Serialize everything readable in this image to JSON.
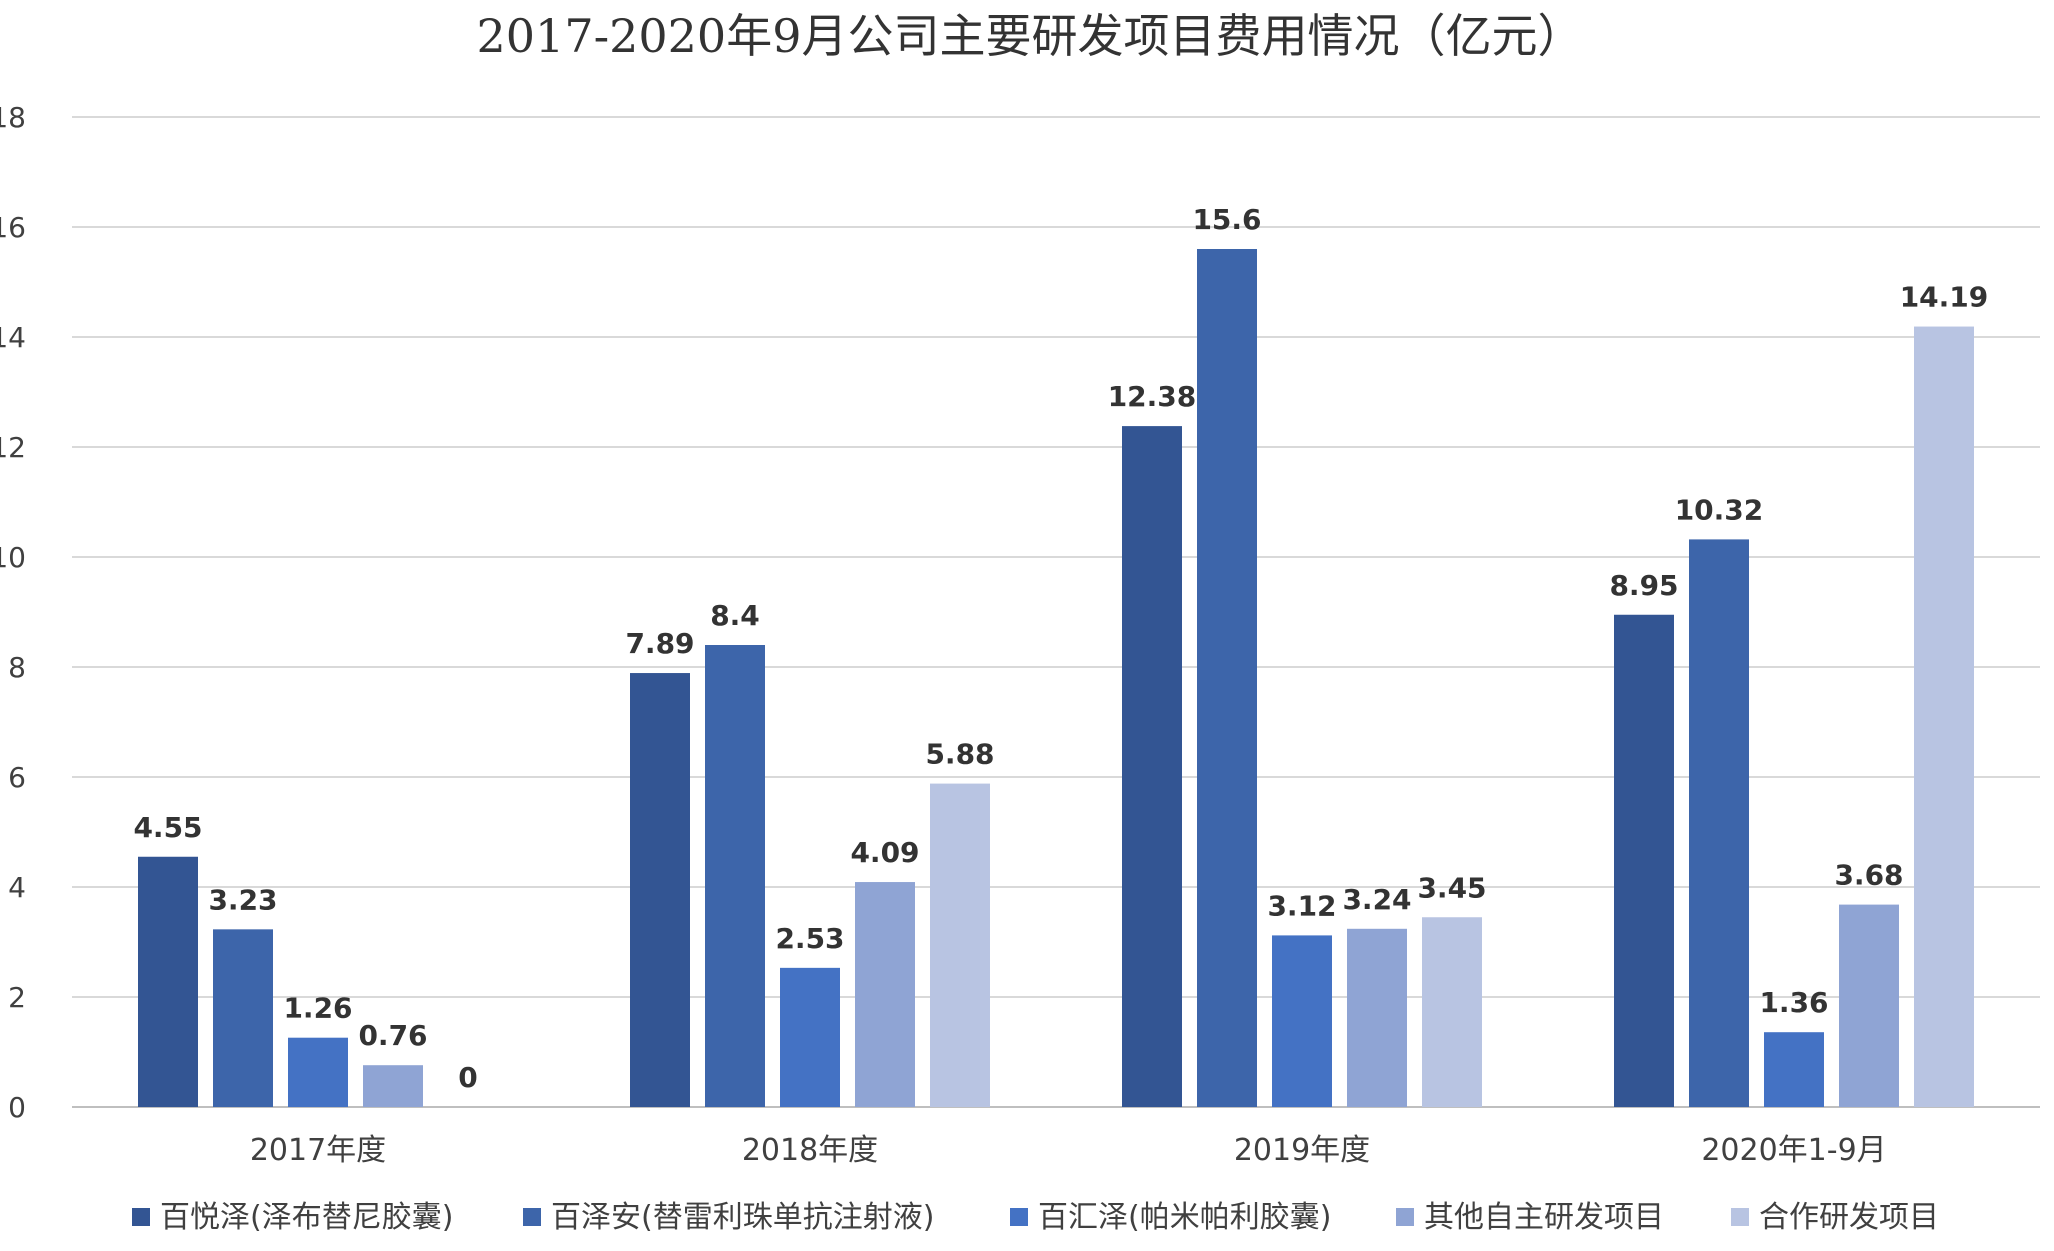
{
  "chart_data": {
    "type": "bar",
    "title": "2017-2020年9月公司主要研发项目费用情况（亿元）",
    "xlabel": "",
    "ylabel": "",
    "ylim": [
      0,
      18
    ],
    "yticks": [
      0,
      2,
      4,
      6,
      8,
      10,
      12,
      14,
      16,
      18
    ],
    "grid": true,
    "legend_position": "bottom",
    "categories": [
      "2017年度",
      "2018年度",
      "2019年度",
      "2020年1-9月"
    ],
    "series": [
      {
        "name": "百悦泽(泽布替尼胶囊)",
        "color": "#335593",
        "values": [
          4.55,
          7.89,
          12.38,
          8.95
        ],
        "labels": [
          "4.55",
          "7.89",
          "12.38",
          "8.95"
        ]
      },
      {
        "name": "百泽安(替雷利珠单抗注射液)",
        "color": "#3D65AA",
        "values": [
          3.23,
          8.4,
          15.6,
          10.32
        ],
        "labels": [
          "3.23",
          "8.4",
          "15.6",
          "10.32"
        ]
      },
      {
        "name": "百汇泽(帕米帕利胶囊)",
        "color": "#4472C4",
        "values": [
          1.26,
          2.53,
          3.12,
          1.36
        ],
        "labels": [
          "1.26",
          "2.53",
          "3.12",
          "1.36"
        ]
      },
      {
        "name": "其他自主研发项目",
        "color": "#8FA4D4",
        "values": [
          0.76,
          4.09,
          3.24,
          3.68
        ],
        "labels": [
          "0.76",
          "4.09",
          "3.24",
          "3.68"
        ]
      },
      {
        "name": "合作研发项目",
        "color": "#B8C4E2",
        "values": [
          0,
          5.88,
          3.45,
          14.19
        ],
        "labels": [
          "0",
          "5.88",
          "3.45",
          "14.19"
        ]
      }
    ]
  }
}
